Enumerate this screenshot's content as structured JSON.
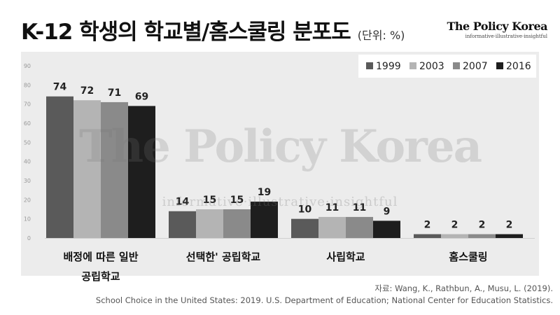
{
  "header": {
    "title": "K-12 학생의 학교별/홈스쿨링 분포도",
    "unit": "(단위: %)"
  },
  "logo": {
    "name": "The Policy Korea",
    "tagline": "informative·illustrative·insightful"
  },
  "watermark": {
    "main": "The Policy Korea",
    "sub": "informative·illustrative·insightful"
  },
  "source": {
    "line1": "자료: Wang, K., Rathbun, A., Musu, L. (2019).",
    "line2": "School Choice in the United States: 2019. U.S. Department of Education; National Center for Education Statistics."
  },
  "chart_data": {
    "type": "bar",
    "categories": [
      [
        "배정에 따른 일반",
        "공립학교"
      ],
      [
        "선택한' 공립학교"
      ],
      [
        "사립학교"
      ],
      [
        "홈스쿨링"
      ]
    ],
    "series": [
      {
        "name": "1999",
        "values": [
          74,
          14,
          10,
          2
        ],
        "color": "#5a5a5a"
      },
      {
        "name": "2003",
        "values": [
          72,
          15,
          11,
          2
        ],
        "color": "#b4b4b4"
      },
      {
        "name": "2007",
        "values": [
          71,
          15,
          11,
          2
        ],
        "color": "#8a8a8a"
      },
      {
        "name": "2016",
        "values": [
          69,
          19,
          9,
          2
        ],
        "color": "#1e1e1e"
      }
    ],
    "ylim": [
      0,
      90
    ],
    "yticks": [
      0,
      10,
      20,
      30,
      40,
      50,
      60,
      70,
      80,
      90
    ],
    "legend_position": "top-right",
    "grid": false
  }
}
